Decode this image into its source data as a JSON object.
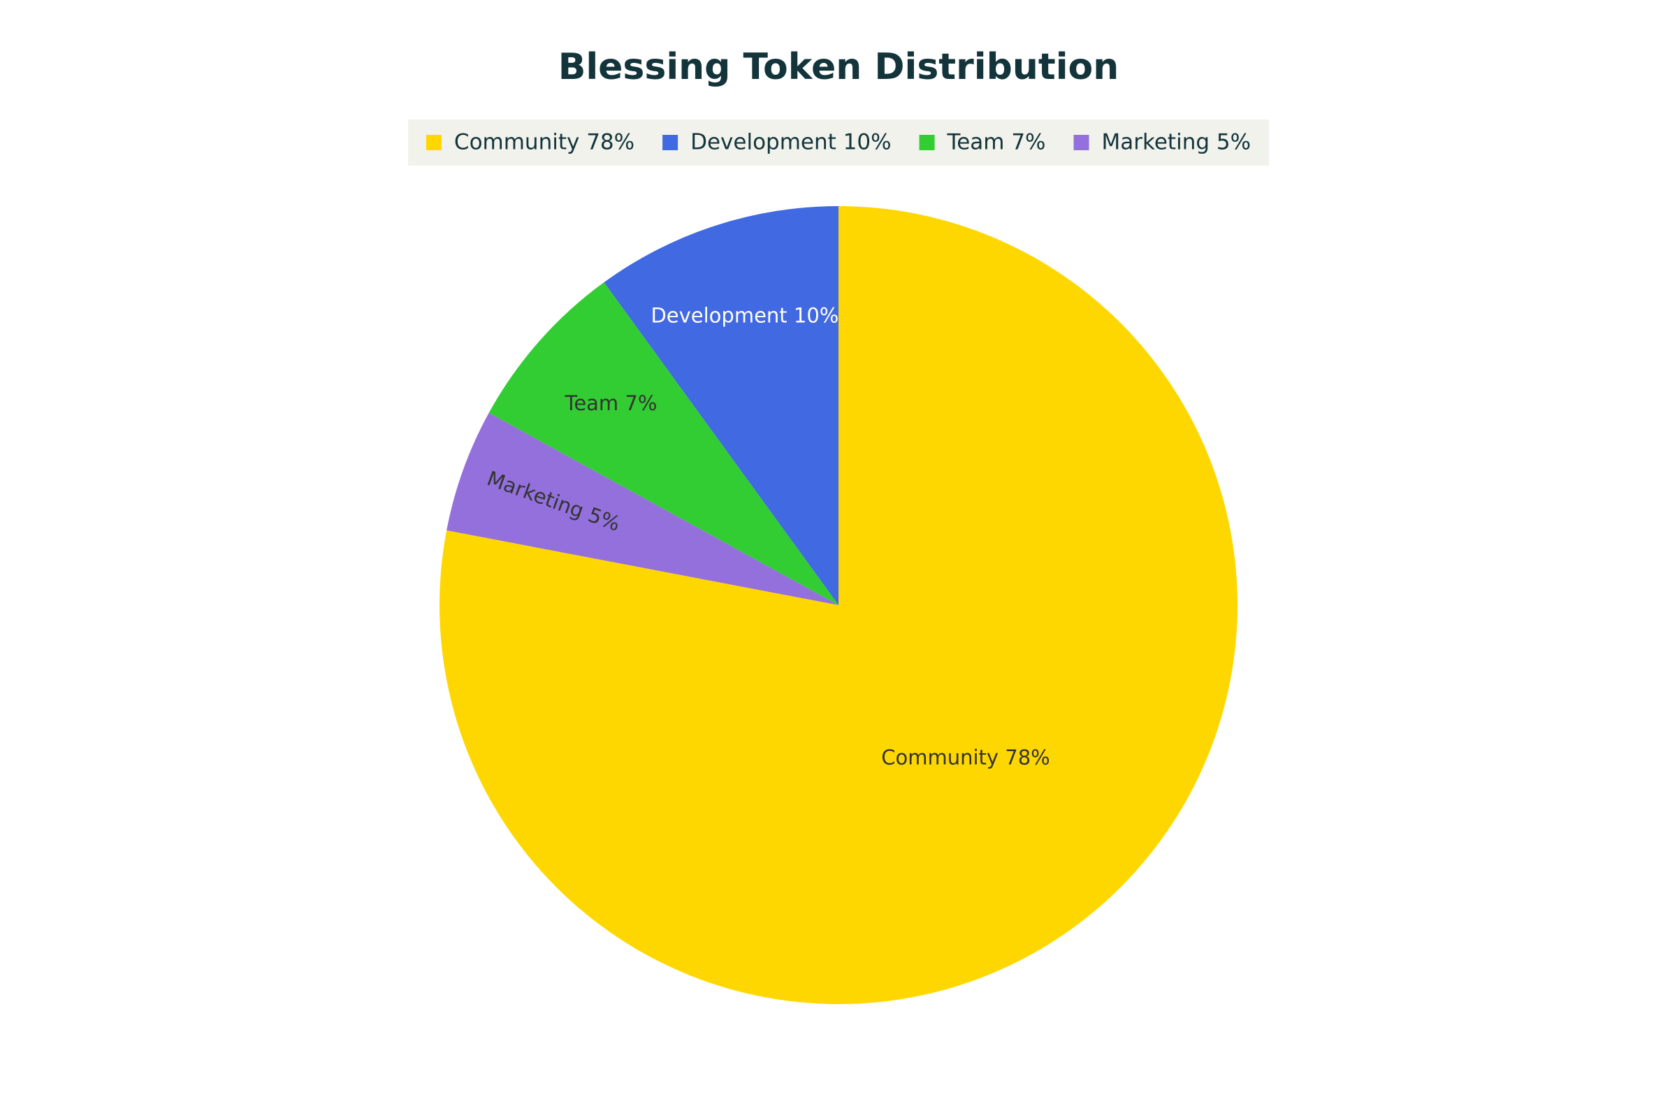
{
  "chart_data": {
    "type": "pie",
    "title": "Blessing Token Distribution",
    "categories": [
      "Community 78%",
      "Development 10%",
      "Team 7%",
      "Marketing 5%"
    ],
    "values": [
      78,
      10,
      7,
      5
    ],
    "colors": [
      "#FFD700",
      "#4169E1",
      "#32CD32",
      "#9370DB"
    ],
    "legend": "top"
  }
}
